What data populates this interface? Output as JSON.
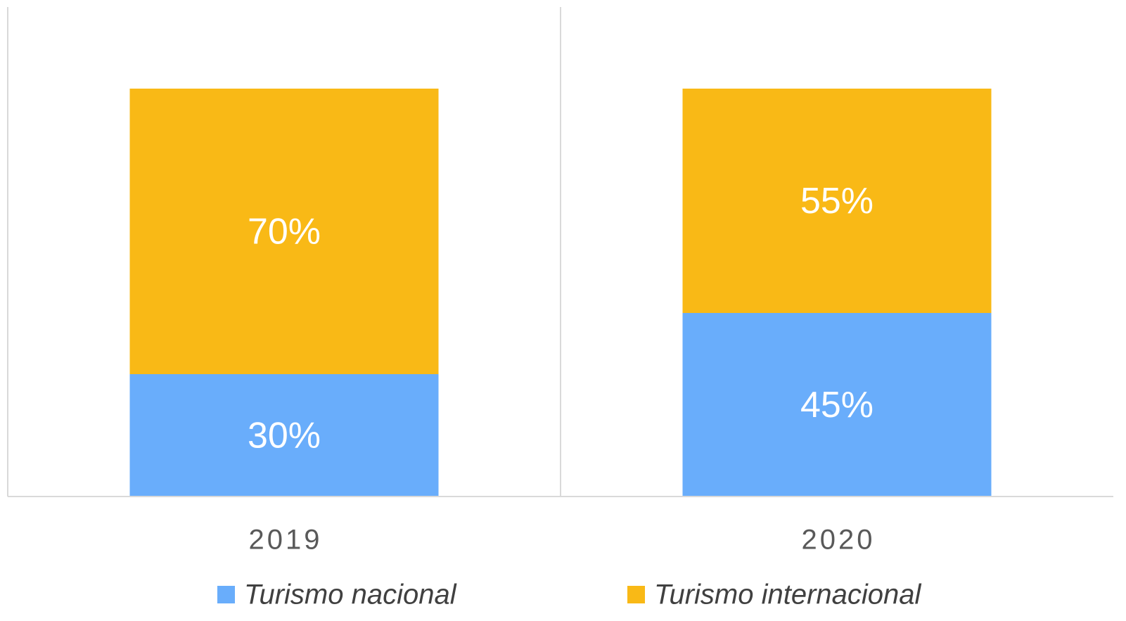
{
  "chart_data": {
    "type": "stacked_bar",
    "categories": [
      "2019",
      "2020"
    ],
    "series": [
      {
        "name": "Turismo nacional",
        "color": "#69adfb",
        "values": [
          30,
          45
        ],
        "value_labels": [
          "30%",
          "45%"
        ]
      },
      {
        "name": "Turismo internacional",
        "color": "#f9b916",
        "values": [
          70,
          55
        ],
        "value_labels": [
          "70%",
          "55%"
        ]
      }
    ],
    "ylim": [
      0,
      100
    ],
    "legend": "bottom"
  }
}
